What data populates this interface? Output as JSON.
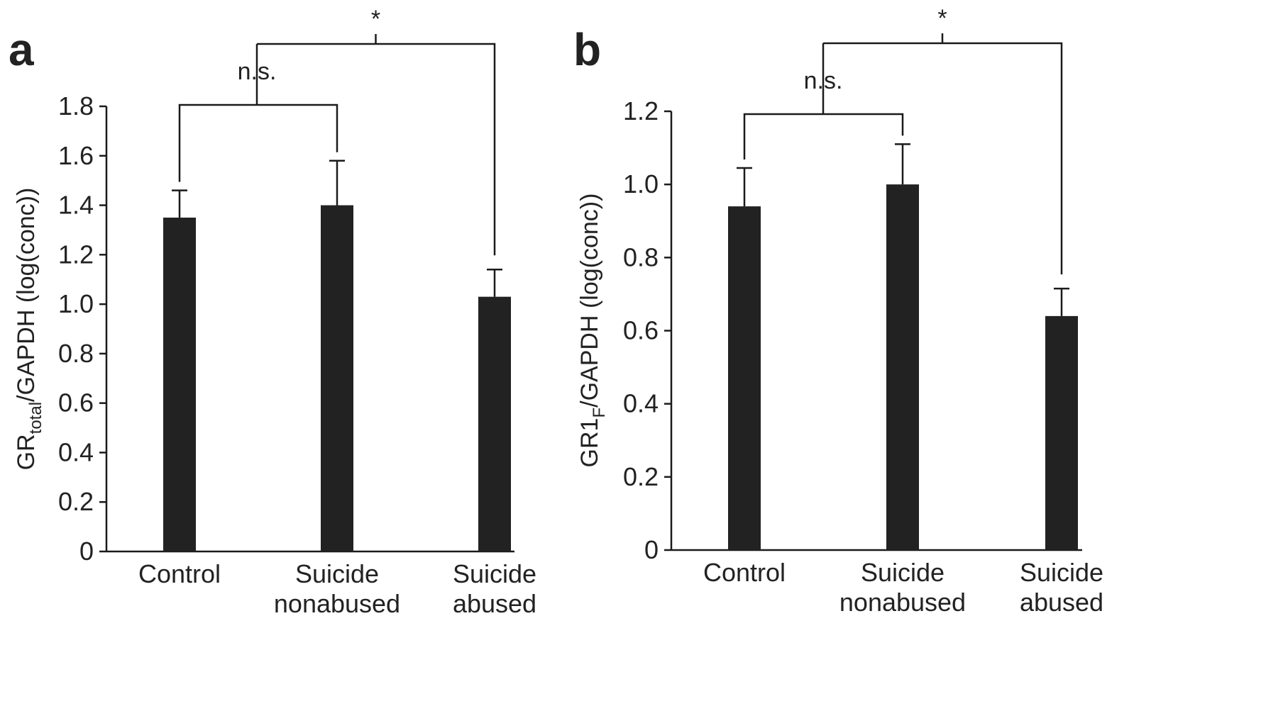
{
  "chart_data": [
    {
      "type": "bar",
      "panel_label": "a",
      "ylabel_main": "GR",
      "ylabel_sub": "total",
      "ylabel_rest": "/GAPDH (log(conc))",
      "categories": [
        [
          "Control"
        ],
        [
          "Suicide",
          "nonabused"
        ],
        [
          "Suicide",
          "abused"
        ]
      ],
      "values": [
        1.35,
        1.4,
        1.03
      ],
      "errors": [
        0.11,
        0.18,
        0.11
      ],
      "ylim": [
        0,
        1.8
      ],
      "yticks": [
        "0",
        "0.2",
        "0.4",
        "0.6",
        "0.8",
        "1.0",
        "1.2",
        "1.4",
        "1.6",
        "1.8"
      ],
      "significance": [
        {
          "pair": [
            0,
            1
          ],
          "label": "n.s."
        },
        {
          "pair": [
            "01",
            2
          ],
          "label": "*"
        }
      ],
      "bar_color": "#222222"
    },
    {
      "type": "bar",
      "panel_label": "b",
      "ylabel_main": "GR1",
      "ylabel_sub": "F",
      "ylabel_rest": "/GAPDH (log(conc))",
      "categories": [
        [
          "Control"
        ],
        [
          "Suicide",
          "nonabused"
        ],
        [
          "Suicide",
          "abused"
        ]
      ],
      "values": [
        0.94,
        1.0,
        0.64
      ],
      "errors": [
        0.105,
        0.11,
        0.075
      ],
      "ylim": [
        0,
        1.2
      ],
      "yticks": [
        "0",
        "0.2",
        "0.4",
        "0.6",
        "0.8",
        "1.0",
        "1.2"
      ],
      "significance": [
        {
          "pair": [
            0,
            1
          ],
          "label": "n.s."
        },
        {
          "pair": [
            "01",
            2
          ],
          "label": "*"
        }
      ],
      "bar_color": "#222222"
    }
  ]
}
